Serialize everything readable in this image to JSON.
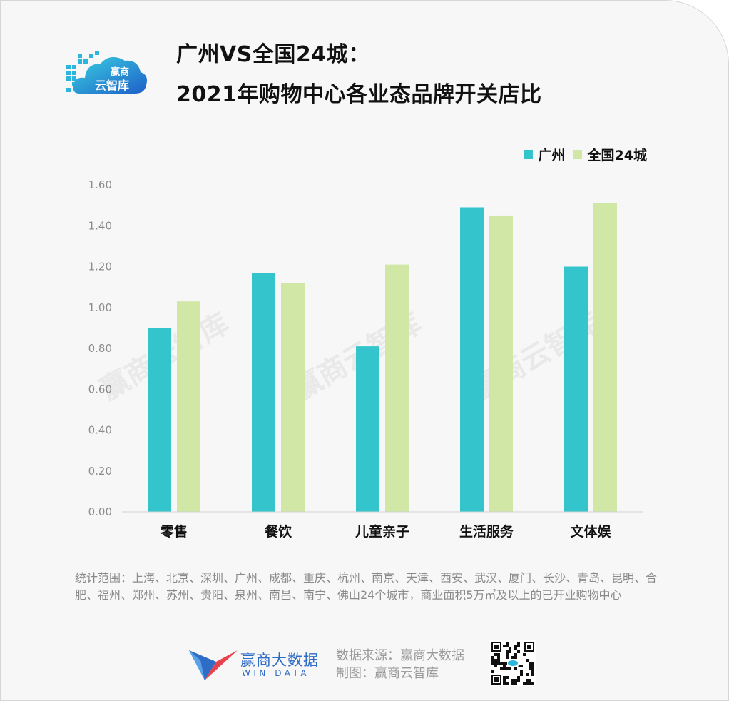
{
  "header": {
    "logo_text_top": "赢商",
    "logo_text_bottom": "云智库",
    "title_line1": "广州VS全国24城：",
    "title_line2": "2021年购物中心各业态品牌开关店比"
  },
  "chart_data": {
    "type": "bar",
    "title": "广州VS全国24城：2021年购物中心各业态品牌开关店比",
    "categories": [
      "零售",
      "餐饮",
      "儿童亲子",
      "生活服务",
      "文体娱"
    ],
    "series": [
      {
        "name": "广州",
        "values": [
          0.9,
          1.17,
          0.81,
          1.49,
          1.2
        ],
        "color": "#33c4cc"
      },
      {
        "name": "全国24城",
        "values": [
          1.03,
          1.12,
          1.21,
          1.45,
          1.51
        ],
        "color": "#d1e7a6"
      }
    ],
    "ylim": [
      0,
      1.6
    ],
    "yticks": [
      "0.00",
      "0.20",
      "0.40",
      "0.60",
      "0.80",
      "1.00",
      "1.20",
      "1.40",
      "1.60"
    ],
    "grid": false,
    "legend_position": "top-right"
  },
  "watermark": "赢商云智库",
  "footer": {
    "note": "统计范围：上海、北京、深圳、广州、成都、重庆、杭州、南京、天津、西安、武汉、厦门、长沙、青岛、昆明、合肥、福州、郑州、苏州、贵阳、泉州、南昌、南宁、佛山24个城市，商业面积5万㎡及以上的已开业购物中心",
    "brand_name": "赢商大数据",
    "brand_sub": "WIN DATA",
    "source_line": "数据来源：赢商大数据",
    "made_by_line": "制图：赢商云智库"
  }
}
